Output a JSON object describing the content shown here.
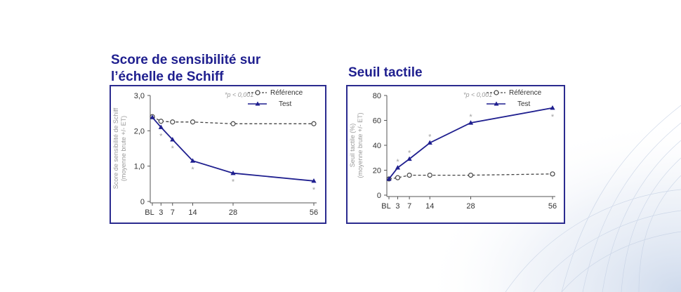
{
  "chart_data": [
    {
      "type": "line",
      "title": "Score de sensibilité sur l’échelle de Schiff",
      "ylabel": "Score de sensibilité de Schiff",
      "ylabel2": "(moyenne brute +/- ET)",
      "ylim": [
        0,
        3
      ],
      "yticks": [
        "0",
        "1,0",
        "2,0",
        "3,0"
      ],
      "ytick_values": [
        0,
        1,
        2,
        3
      ],
      "x": [
        0,
        3,
        7,
        14,
        28,
        56
      ],
      "xticks": [
        "BL",
        "3",
        "7",
        "14",
        "28",
        "56"
      ],
      "significance_note": "*p < 0,001",
      "legend_position": "top-right",
      "grid": false,
      "series": [
        {
          "name": "Référence",
          "style": "dashed",
          "marker": "open-circle",
          "color": "#444444",
          "values": [
            2.4,
            2.27,
            2.25,
            2.25,
            2.2,
            2.2
          ]
        },
        {
          "name": "Test",
          "style": "solid",
          "marker": "filled-triangle",
          "color": "#1f1f8f",
          "values": [
            2.38,
            2.1,
            1.75,
            1.15,
            0.8,
            0.58
          ],
          "significant": [
            false,
            true,
            true,
            true,
            true,
            true
          ]
        }
      ]
    },
    {
      "type": "line",
      "title": "Seuil tactile",
      "ylabel": "Seuil tactile (%)",
      "ylabel2": "(moyenne brute +/- ET)",
      "ylim": [
        0,
        80
      ],
      "yticks": [
        "0",
        "20",
        "40",
        "60",
        "80"
      ],
      "ytick_values": [
        0,
        20,
        40,
        60,
        80
      ],
      "x": [
        0,
        3,
        7,
        14,
        28,
        56
      ],
      "xticks": [
        "BL",
        "3",
        "7",
        "14",
        "28",
        "56"
      ],
      "significance_note": "*p < 0,001",
      "legend_position": "top-right",
      "grid": false,
      "series": [
        {
          "name": "Référence",
          "style": "dashed",
          "marker": "open-circle",
          "color": "#444444",
          "values": [
            13,
            14,
            16,
            16,
            16,
            17
          ]
        },
        {
          "name": "Test",
          "style": "solid",
          "marker": "filled-triangle",
          "color": "#1f1f8f",
          "values": [
            13,
            22,
            29,
            42,
            58,
            70
          ],
          "significant": [
            false,
            true,
            true,
            true,
            true,
            true
          ]
        }
      ]
    }
  ]
}
